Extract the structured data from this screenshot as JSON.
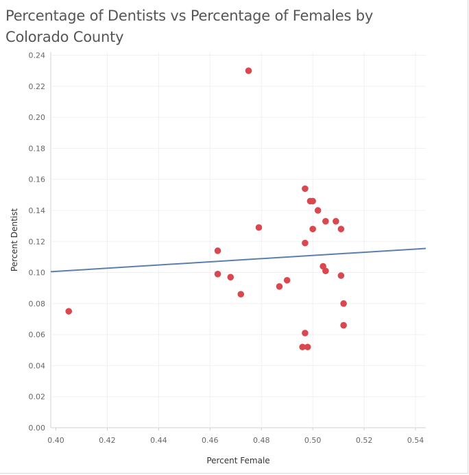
{
  "chart_data": {
    "type": "scatter",
    "title": "Percentage of Dentists vs Percentage of Females by Colorado County",
    "xlabel": "Percent Female",
    "ylabel": "Percent Dentist",
    "xlim": [
      0.398,
      0.544
    ],
    "ylim": [
      0.0,
      0.242
    ],
    "x_ticks": [
      "0.40",
      "0.42",
      "0.44",
      "0.46",
      "0.48",
      "0.50",
      "0.52",
      "0.54"
    ],
    "y_ticks": [
      "0.00",
      "0.02",
      "0.04",
      "0.06",
      "0.08",
      "0.10",
      "0.12",
      "0.14",
      "0.16",
      "0.18",
      "0.20",
      "0.22",
      "0.24"
    ],
    "grid": true,
    "marker_color": "#d9484f",
    "trend_color": "#5b7fad",
    "points": [
      {
        "x": 0.405,
        "y": 0.075
      },
      {
        "x": 0.463,
        "y": 0.114
      },
      {
        "x": 0.463,
        "y": 0.099
      },
      {
        "x": 0.468,
        "y": 0.097
      },
      {
        "x": 0.472,
        "y": 0.086
      },
      {
        "x": 0.475,
        "y": 0.23
      },
      {
        "x": 0.479,
        "y": 0.129
      },
      {
        "x": 0.487,
        "y": 0.091
      },
      {
        "x": 0.49,
        "y": 0.095
      },
      {
        "x": 0.496,
        "y": 0.052
      },
      {
        "x": 0.497,
        "y": 0.154
      },
      {
        "x": 0.497,
        "y": 0.119
      },
      {
        "x": 0.497,
        "y": 0.061
      },
      {
        "x": 0.498,
        "y": 0.052
      },
      {
        "x": 0.499,
        "y": 0.146
      },
      {
        "x": 0.5,
        "y": 0.128
      },
      {
        "x": 0.5,
        "y": 0.146
      },
      {
        "x": 0.502,
        "y": 0.14
      },
      {
        "x": 0.504,
        "y": 0.104
      },
      {
        "x": 0.505,
        "y": 0.101
      },
      {
        "x": 0.505,
        "y": 0.133
      },
      {
        "x": 0.509,
        "y": 0.133
      },
      {
        "x": 0.511,
        "y": 0.098
      },
      {
        "x": 0.511,
        "y": 0.128
      },
      {
        "x": 0.512,
        "y": 0.08
      },
      {
        "x": 0.512,
        "y": 0.066
      }
    ],
    "trend_line": {
      "x": [
        0.398,
        0.544
      ],
      "y": [
        0.1005,
        0.1155
      ]
    }
  }
}
